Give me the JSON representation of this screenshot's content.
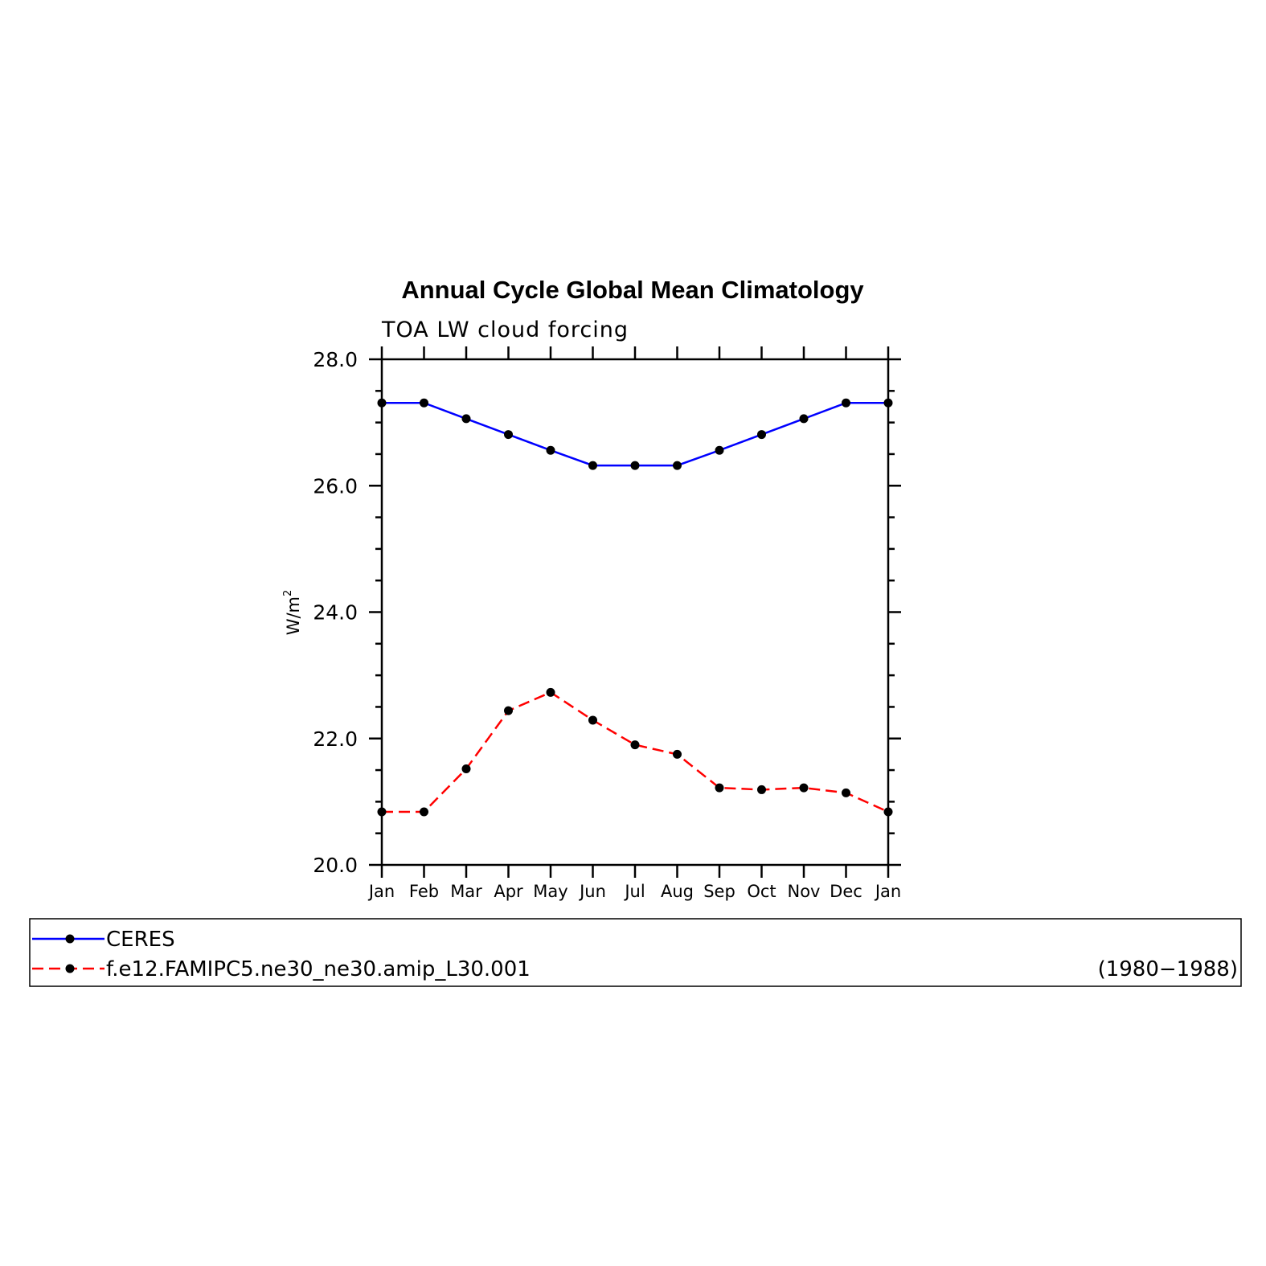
{
  "title": "Annual Cycle Global Mean Climatology",
  "subtitle": "TOA LW cloud forcing",
  "ylabel_base": "W/m",
  "ylabel_sup": "2",
  "period": "(1980−1988)",
  "chart_data": {
    "type": "line",
    "title": "Annual Cycle Global Mean Climatology",
    "subtitle": "TOA LW cloud forcing",
    "ylabel": "W/m2",
    "xlabel": "",
    "categories": [
      "Jan",
      "Feb",
      "Mar",
      "Apr",
      "May",
      "Jun",
      "Jul",
      "Aug",
      "Sep",
      "Oct",
      "Nov",
      "Dec",
      "Jan"
    ],
    "ylim": [
      20.0,
      28.0
    ],
    "yticks": [
      "20.0",
      "22.0",
      "24.0",
      "26.0",
      "28.0"
    ],
    "grid": false,
    "legend_position": "bottom",
    "series": [
      {
        "name": "CERES",
        "color": "#0000ff",
        "dash": "solid",
        "marker": "circle",
        "values": [
          27.31,
          27.31,
          27.06,
          26.81,
          26.56,
          26.32,
          26.32,
          26.32,
          26.56,
          26.81,
          27.06,
          27.31,
          27.31
        ]
      },
      {
        "name": "f.e12.FAMIPC5.ne30_ne30.amip_L30.001",
        "color": "#ff0000",
        "dash": "dashed",
        "marker": "circle",
        "values": [
          20.84,
          20.84,
          21.52,
          22.44,
          22.73,
          22.29,
          21.9,
          21.75,
          21.22,
          21.19,
          21.22,
          21.14,
          20.84
        ]
      }
    ]
  }
}
